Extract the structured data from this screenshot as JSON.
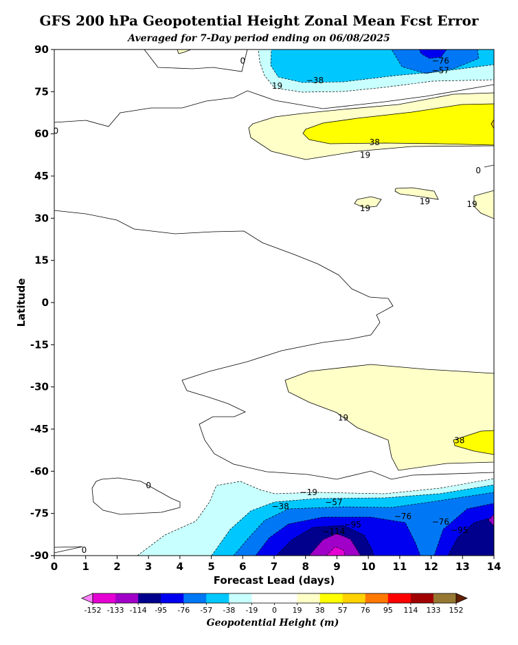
{
  "title": "GFS 200 hPa Geopotential Height Zonal Mean Fcst Error",
  "subtitle": "Averaged for 7-Day period ending on 06/08/2025",
  "chart_data": {
    "type": "heatmap",
    "title": "GFS 200 hPa Geopotential Height Zonal Mean Fcst Error",
    "subtitle": "Averaged for 7-Day period ending on 06/08/2025",
    "xlabel": "Forecast Lead (days)",
    "ylabel": "Latitude",
    "xlim": [
      0,
      14
    ],
    "ylim": [
      -90,
      90
    ],
    "x_ticks": [
      "0",
      "1",
      "2",
      "3",
      "4",
      "5",
      "6",
      "7",
      "8",
      "9",
      "10",
      "11",
      "12",
      "13",
      "14"
    ],
    "y_ticks": [
      "-90",
      "-75",
      "-60",
      "-45",
      "-30",
      "-15",
      "0",
      "15",
      "30",
      "45",
      "60",
      "75",
      "90"
    ],
    "colorbar": {
      "label": "Geopotential Height (m)",
      "levels": [
        "-152",
        "-133",
        "-114",
        "-95",
        "-76",
        "-57",
        "-38",
        "-19",
        "0",
        "19",
        "38",
        "57",
        "76",
        "95",
        "114",
        "133",
        "152"
      ],
      "colors": [
        "#e600d4",
        "#a000c8",
        "#00008c",
        "#0000f0",
        "#0078f5",
        "#00c8ff",
        "#c8ffff",
        "#ffffff",
        "#ffffff",
        "#ffffc8",
        "#ffff00",
        "#ffd200",
        "#ff7800",
        "#ff0000",
        "#a00000",
        "#967832"
      ],
      "extend_low_color": "#ff80ff",
      "extend_high_color": "#641e00"
    },
    "contour_labels": [
      {
        "text": "0",
        "lead": 6.0,
        "lat": 86
      },
      {
        "text": "−38",
        "lead": 8.3,
        "lat": 79
      },
      {
        "text": "−76",
        "lead": 12.3,
        "lat": 86
      },
      {
        "text": "−57",
        "lead": 12.3,
        "lat": 82.5
      },
      {
        "text": "19",
        "lead": 7.1,
        "lat": 77
      },
      {
        "text": "0",
        "lead": 0.05,
        "lat": 61
      },
      {
        "text": "38",
        "lead": 10.2,
        "lat": 57
      },
      {
        "text": "19",
        "lead": 9.9,
        "lat": 52.5
      },
      {
        "text": "0",
        "lead": 13.5,
        "lat": 47
      },
      {
        "text": "19",
        "lead": 9.9,
        "lat": 33.5
      },
      {
        "text": "19",
        "lead": 11.8,
        "lat": 36
      },
      {
        "text": "19",
        "lead": 13.3,
        "lat": 35
      },
      {
        "text": "19",
        "lead": 9.2,
        "lat": -41
      },
      {
        "text": "38",
        "lead": 12.9,
        "lat": -49
      },
      {
        "text": "0",
        "lead": 3.0,
        "lat": -65
      },
      {
        "text": "−19",
        "lead": 8.1,
        "lat": -67.5
      },
      {
        "text": "−38",
        "lead": 7.2,
        "lat": -72.5
      },
      {
        "text": "−57",
        "lead": 8.9,
        "lat": -71
      },
      {
        "text": "−76",
        "lead": 11.1,
        "lat": -76
      },
      {
        "text": "−95",
        "lead": 9.5,
        "lat": -79
      },
      {
        "text": "−114",
        "lead": 8.9,
        "lat": -81.5
      },
      {
        "text": "−76",
        "lead": 12.3,
        "lat": -78
      },
      {
        "text": "−95",
        "lead": 12.9,
        "lat": -81
      },
      {
        "text": "0",
        "lead": 0.95,
        "lat": -88
      }
    ]
  }
}
